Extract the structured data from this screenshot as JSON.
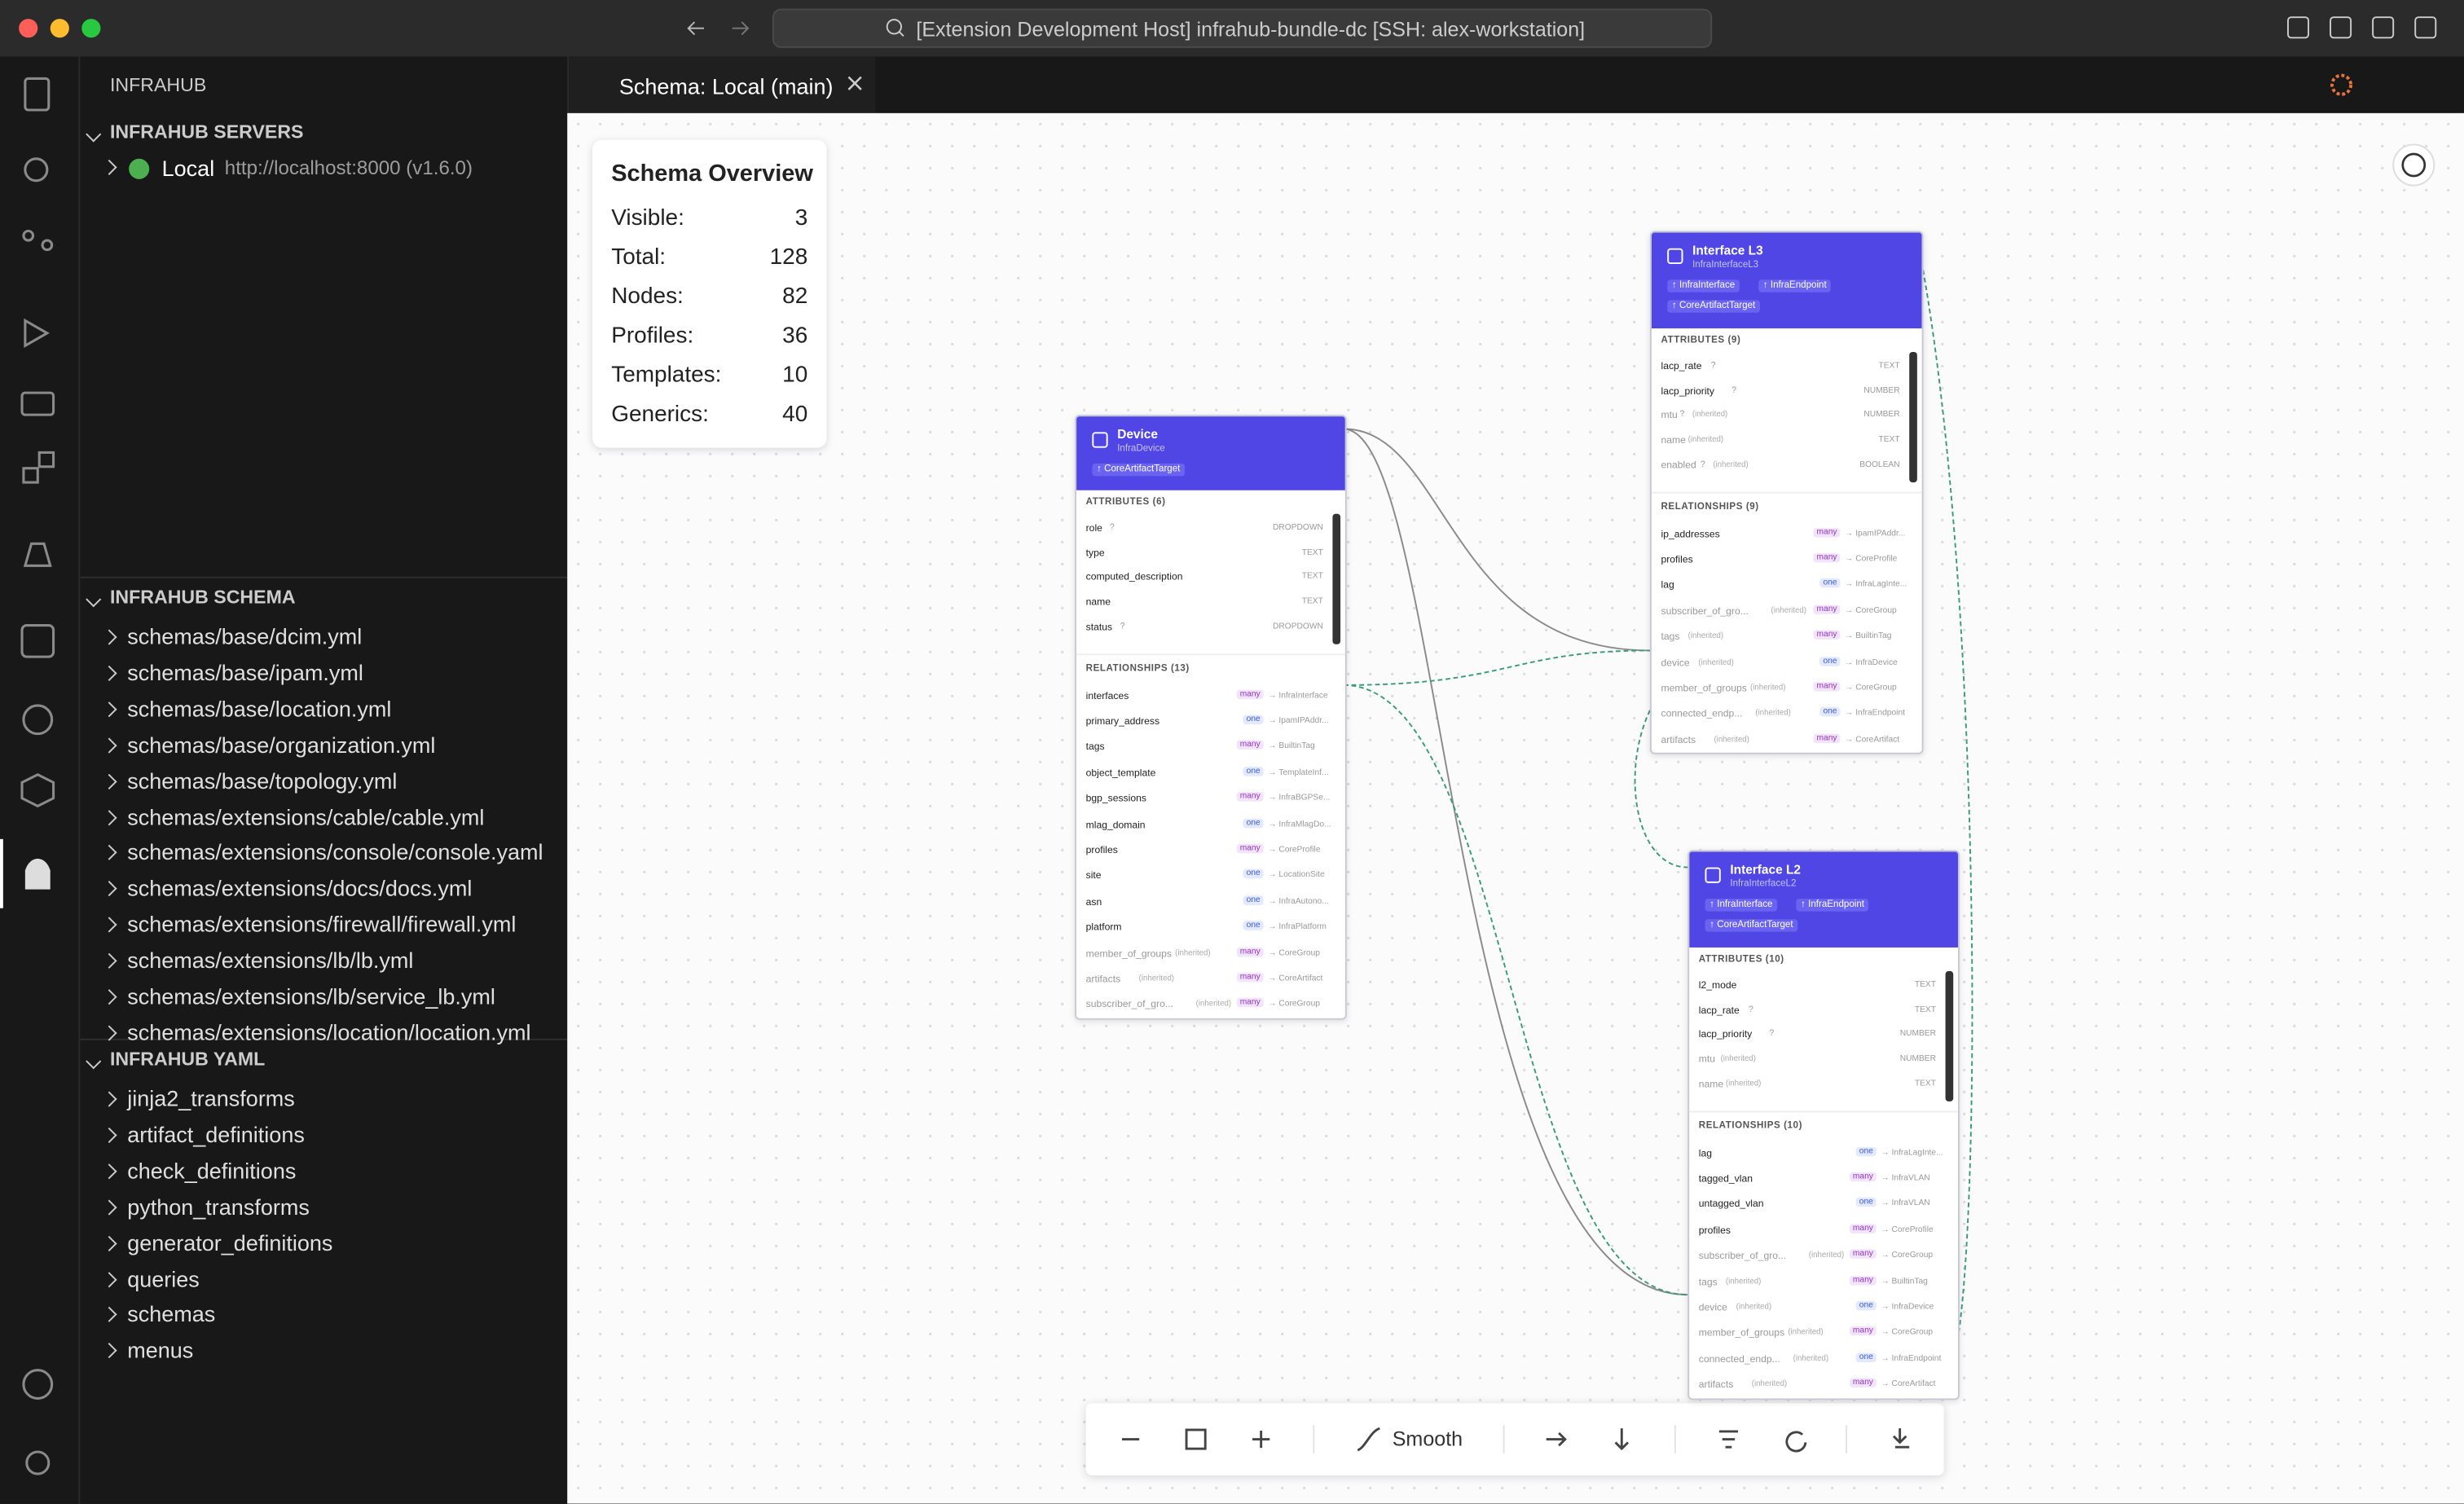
{
  "window": {
    "title": "[Extension Development Host] infrahub-bundle-dc [SSH: alex-workstation]"
  },
  "sidebar": {
    "title": "INFRAHUB",
    "servers": {
      "title": "INFRAHUB SERVERS",
      "items": [
        {
          "name": "Local",
          "url": "http://localhost:8000 (v1.6.0)"
        }
      ]
    },
    "schema": {
      "title": "INFRAHUB SCHEMA",
      "items": [
        "schemas/base/dcim.yml",
        "schemas/base/ipam.yml",
        "schemas/base/location.yml",
        "schemas/base/organization.yml",
        "schemas/base/topology.yml",
        "schemas/extensions/cable/cable.yml",
        "schemas/extensions/console/console.yaml",
        "schemas/extensions/docs/docs.yml",
        "schemas/extensions/firewall/firewall.yml",
        "schemas/extensions/lb/lb.yml",
        "schemas/extensions/lb/service_lb.yml",
        "schemas/extensions/location/location.yml"
      ]
    },
    "yaml": {
      "title": "INFRAHUB YAML",
      "items": [
        "jinja2_transforms",
        "artifact_definitions",
        "check_definitions",
        "python_transforms",
        "generator_definitions",
        "queries",
        "schemas",
        "menus"
      ]
    }
  },
  "tab": {
    "title": "Schema: Local (main)"
  },
  "overview": {
    "title": "Schema Overview",
    "rows": [
      {
        "label": "Visible:",
        "value": 3
      },
      {
        "label": "Total:",
        "value": 128
      },
      {
        "label": "Nodes:",
        "value": 82
      },
      {
        "label": "Profiles:",
        "value": 36
      },
      {
        "label": "Templates:",
        "value": 10
      },
      {
        "label": "Generics:",
        "value": 40
      }
    ]
  },
  "nodes": [
    {
      "name": "Device",
      "kind": "InfraDevice",
      "inherits": [
        "↑ CoreArtifactTarget"
      ],
      "attributes_title": "ATTRIBUTES (6)",
      "attributes": [
        {
          "name": "role",
          "flag": "?",
          "type": "DROPDOWN"
        },
        {
          "name": "type",
          "type": "TEXT"
        },
        {
          "name": "computed_description",
          "type": "TEXT"
        },
        {
          "name": "name",
          "type": "TEXT"
        },
        {
          "name": "status",
          "flag": "?",
          "type": "DROPDOWN"
        }
      ],
      "relationships_title": "RELATIONSHIPS (13)",
      "relationships": [
        {
          "name": "interfaces",
          "cardinality": "many",
          "peer": "→ InfraInterface"
        },
        {
          "name": "primary_address",
          "cardinality": "one",
          "peer": "→ IpamIPAddr..."
        },
        {
          "name": "tags",
          "cardinality": "many",
          "peer": "→ BuiltinTag"
        },
        {
          "name": "object_template",
          "cardinality": "one",
          "peer": "→ TemplateInf..."
        },
        {
          "name": "bgp_sessions",
          "cardinality": "many",
          "peer": "→ InfraBGPSe..."
        },
        {
          "name": "mlag_domain",
          "cardinality": "one",
          "peer": "→ InfraMlagDo..."
        },
        {
          "name": "profiles",
          "cardinality": "many",
          "peer": "→ CoreProfile"
        },
        {
          "name": "site",
          "cardinality": "one",
          "peer": "→ LocationSite"
        },
        {
          "name": "asn",
          "cardinality": "one",
          "peer": "→ InfraAutono..."
        },
        {
          "name": "platform",
          "cardinality": "one",
          "peer": "→ InfraPlatform"
        },
        {
          "name": "member_of_groups",
          "note": "(inherited)",
          "cardinality": "many",
          "peer": "→ CoreGroup"
        },
        {
          "name": "artifacts",
          "note": "(inherited)",
          "cardinality": "many",
          "peer": "→ CoreArtifact"
        },
        {
          "name": "subscriber_of_gro...",
          "note": "(inherited)",
          "cardinality": "many",
          "peer": "→ CoreGroup"
        }
      ]
    },
    {
      "name": "Interface L3",
      "kind": "InfraInterfaceL3",
      "inherits": [
        "↑ InfraInterface",
        "↑ InfraEndpoint",
        "↑ CoreArtifactTarget"
      ],
      "attributes_title": "ATTRIBUTES (9)",
      "attributes": [
        {
          "name": "lacp_rate",
          "flag": "?",
          "type": "TEXT"
        },
        {
          "name": "lacp_priority",
          "flag": "?",
          "type": "NUMBER"
        },
        {
          "name": "mtu",
          "flag": "?",
          "note": "(inherited)",
          "type": "NUMBER"
        },
        {
          "name": "name",
          "note": "(inherited)",
          "type": "TEXT"
        },
        {
          "name": "enabled",
          "flag": "?",
          "note": "(inherited)",
          "type": "BOOLEAN"
        }
      ],
      "relationships_title": "RELATIONSHIPS (9)",
      "relationships": [
        {
          "name": "ip_addresses",
          "cardinality": "many",
          "peer": "→ IpamIPAddr..."
        },
        {
          "name": "profiles",
          "cardinality": "many",
          "peer": "→ CoreProfile"
        },
        {
          "name": "lag",
          "cardinality": "one",
          "peer": "→ InfraLagInte..."
        },
        {
          "name": "subscriber_of_gro...",
          "note": "(inherited)",
          "cardinality": "many",
          "peer": "→ CoreGroup"
        },
        {
          "name": "tags",
          "note": "(inherited)",
          "cardinality": "many",
          "peer": "→ BuiltinTag"
        },
        {
          "name": "device",
          "note": "(inherited)",
          "cardinality": "one",
          "peer": "→ InfraDevice"
        },
        {
          "name": "member_of_groups",
          "note": "(inherited)",
          "cardinality": "many",
          "peer": "→ CoreGroup"
        },
        {
          "name": "connected_endp...",
          "note": "(inherited)",
          "cardinality": "one",
          "peer": "→ InfraEndpoint"
        },
        {
          "name": "artifacts",
          "note": "(inherited)",
          "cardinality": "many",
          "peer": "→ CoreArtifact"
        }
      ]
    },
    {
      "name": "Interface L2",
      "kind": "InfraInterfaceL2",
      "inherits": [
        "↑ InfraInterface",
        "↑ InfraEndpoint",
        "↑ CoreArtifactTarget"
      ],
      "attributes_title": "ATTRIBUTES (10)",
      "attributes": [
        {
          "name": "l2_mode",
          "type": "TEXT"
        },
        {
          "name": "lacp_rate",
          "flag": "?",
          "type": "TEXT"
        },
        {
          "name": "lacp_priority",
          "flag": "?",
          "type": "NUMBER"
        },
        {
          "name": "mtu",
          "note": "(inherited)",
          "type": "NUMBER"
        },
        {
          "name": "name",
          "note": "(inherited)",
          "type": "TEXT"
        }
      ],
      "relationships_title": "RELATIONSHIPS (10)",
      "relationships": [
        {
          "name": "lag",
          "cardinality": "one",
          "peer": "→ InfraLagInte..."
        },
        {
          "name": "tagged_vlan",
          "cardinality": "many",
          "peer": "→ InfraVLAN"
        },
        {
          "name": "untagged_vlan",
          "cardinality": "one",
          "peer": "→ InfraVLAN"
        },
        {
          "name": "profiles",
          "cardinality": "many",
          "peer": "→ CoreProfile"
        },
        {
          "name": "subscriber_of_gro...",
          "note": "(inherited)",
          "cardinality": "many",
          "peer": "→ CoreGroup"
        },
        {
          "name": "tags",
          "note": "(inherited)",
          "cardinality": "many",
          "peer": "→ BuiltinTag"
        },
        {
          "name": "device",
          "note": "(inherited)",
          "cardinality": "one",
          "peer": "→ InfraDevice"
        },
        {
          "name": "member_of_groups",
          "note": "(inherited)",
          "cardinality": "many",
          "peer": "→ CoreGroup"
        },
        {
          "name": "connected_endp...",
          "note": "(inherited)",
          "cardinality": "one",
          "peer": "→ InfraEndpoint"
        },
        {
          "name": "artifacts",
          "note": "(inherited)",
          "cardinality": "many",
          "peer": "→ CoreArtifact"
        }
      ]
    }
  ],
  "toolbar": {
    "layout": "Smooth"
  }
}
